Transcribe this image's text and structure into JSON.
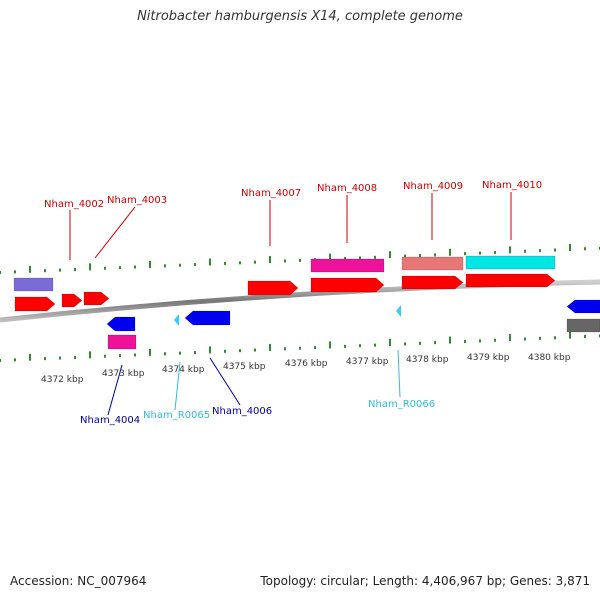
{
  "title": "Nitrobacter hamburgensis X14, complete genome",
  "footer": {
    "accession": "Accession: NC_007964",
    "summary": "Topology: circular; Length: 4,406,967 bp; Genes: 3,871"
  },
  "colors": {
    "cds_forward": "#ff0000",
    "cds_reverse": "#0000ee",
    "gene_magenta": "#ee1199",
    "gene_lavender": "#7b6bd6",
    "gene_salmon": "#e87878",
    "gene_cyan": "#00e6e6",
    "gene_gray": "#666666",
    "rna": "#33ccff",
    "label_forward": "#cc0000",
    "label_reverse": "#000099",
    "label_rna": "#33bbdd",
    "tick": "#2e8b2e",
    "backbone": "#888888"
  },
  "axis_ticks": [
    "4372 kbp",
    "4373 kbp",
    "4374 kbp",
    "4375 kbp",
    "4376 kbp",
    "4377 kbp",
    "4378 kbp",
    "4379 kbp",
    "4380 kbp"
  ],
  "gene_labels": [
    {
      "id": "Nham_4002",
      "strand": "forward"
    },
    {
      "id": "Nham_4003",
      "strand": "forward"
    },
    {
      "id": "Nham_4007",
      "strand": "forward"
    },
    {
      "id": "Nham_4008",
      "strand": "forward"
    },
    {
      "id": "Nham_4009",
      "strand": "forward"
    },
    {
      "id": "Nham_4010",
      "strand": "forward"
    },
    {
      "id": "Nham_4004",
      "strand": "reverse"
    },
    {
      "id": "Nham_R0065",
      "strand": "rna"
    },
    {
      "id": "Nham_4006",
      "strand": "reverse"
    },
    {
      "id": "Nham_R0066",
      "strand": "rna"
    }
  ]
}
